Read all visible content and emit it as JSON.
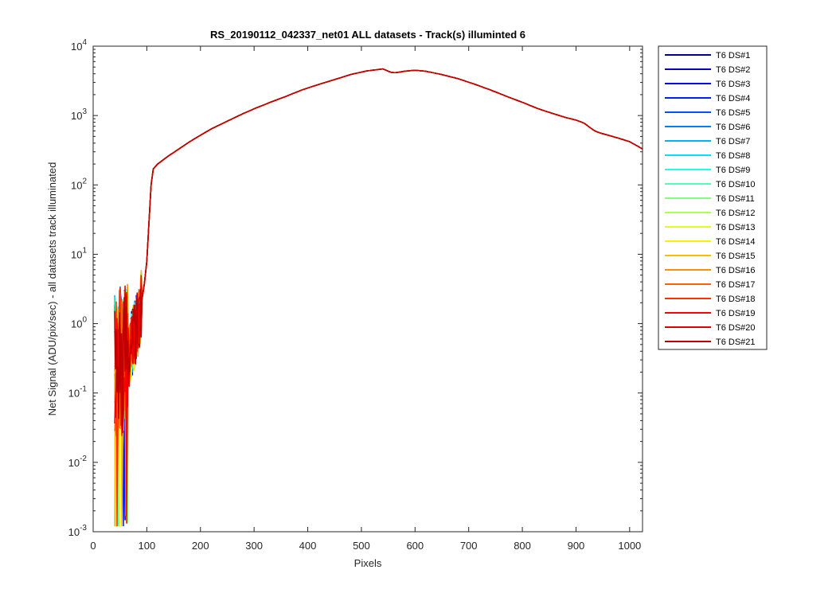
{
  "chart_data": {
    "type": "line",
    "title": "RS_20190112_042337_net01 ALL datasets - Track(s) illuminted 6",
    "xlabel": "Pixels",
    "ylabel": "Net Signal (ADU/pix/sec) - all datasets track illuminated",
    "xlim": [
      0,
      1024
    ],
    "ylim": [
      0.001,
      10000
    ],
    "yscale": "log",
    "x_ticks": [
      0,
      100,
      200,
      300,
      400,
      500,
      600,
      700,
      800,
      900,
      1000
    ],
    "y_tick_exponents": [
      "-3",
      "-2",
      "-1",
      "0",
      "1",
      "2",
      "3",
      "4"
    ],
    "y_tick_base": "10",
    "grid": false,
    "legend_position": "outside-right",
    "series_profile": {
      "x": [
        40,
        45,
        50,
        55,
        60,
        65,
        70,
        75,
        80,
        85,
        90,
        95,
        100,
        103,
        106,
        109,
        112,
        120,
        140,
        160,
        180,
        200,
        220,
        250,
        280,
        300,
        330,
        360,
        390,
        420,
        450,
        480,
        510,
        540,
        555,
        565,
        580,
        600,
        620,
        650,
        680,
        710,
        740,
        770,
        800,
        830,
        860,
        880,
        900,
        915,
        925,
        935,
        945,
        960,
        980,
        1000,
        1010,
        1024
      ],
      "y": [
        0.25,
        0.15,
        0.3,
        0.2,
        0.35,
        0.3,
        0.5,
        0.6,
        0.8,
        1.2,
        2.0,
        3.5,
        8,
        20,
        60,
        130,
        170,
        200,
        260,
        330,
        420,
        520,
        640,
        830,
        1070,
        1250,
        1550,
        1900,
        2350,
        2800,
        3300,
        3900,
        4400,
        4700,
        4200,
        4150,
        4350,
        4500,
        4350,
        3900,
        3400,
        2850,
        2350,
        1900,
        1550,
        1250,
        1050,
        940,
        860,
        780,
        680,
        600,
        560,
        520,
        470,
        420,
        380,
        330
      ]
    },
    "series": [
      {
        "name": "T6 DS#1",
        "color": "#00008F"
      },
      {
        "name": "T6 DS#2",
        "color": "#0000BF"
      },
      {
        "name": "T6 DS#3",
        "color": "#0000EF"
      },
      {
        "name": "T6 DS#4",
        "color": "#0020FF"
      },
      {
        "name": "T6 DS#5",
        "color": "#0050FF"
      },
      {
        "name": "T6 DS#6",
        "color": "#0080FF"
      },
      {
        "name": "T6 DS#7",
        "color": "#00B0FF"
      },
      {
        "name": "T6 DS#8",
        "color": "#00E0FF"
      },
      {
        "name": "T6 DS#9",
        "color": "#20FFDF"
      },
      {
        "name": "T6 DS#10",
        "color": "#50FFAF"
      },
      {
        "name": "T6 DS#11",
        "color": "#80FF80"
      },
      {
        "name": "T6 DS#12",
        "color": "#AFFF50"
      },
      {
        "name": "T6 DS#13",
        "color": "#DFFF20"
      },
      {
        "name": "T6 DS#14",
        "color": "#FFEF00"
      },
      {
        "name": "T6 DS#15",
        "color": "#FFBF00"
      },
      {
        "name": "T6 DS#16",
        "color": "#FF8F00"
      },
      {
        "name": "T6 DS#17",
        "color": "#FF6000"
      },
      {
        "name": "T6 DS#18",
        "color": "#FF3000"
      },
      {
        "name": "T6 DS#19",
        "color": "#FF0000"
      },
      {
        "name": "T6 DS#20",
        "color": "#DF0000"
      },
      {
        "name": "T6 DS#21",
        "color": "#BF0000"
      }
    ]
  }
}
